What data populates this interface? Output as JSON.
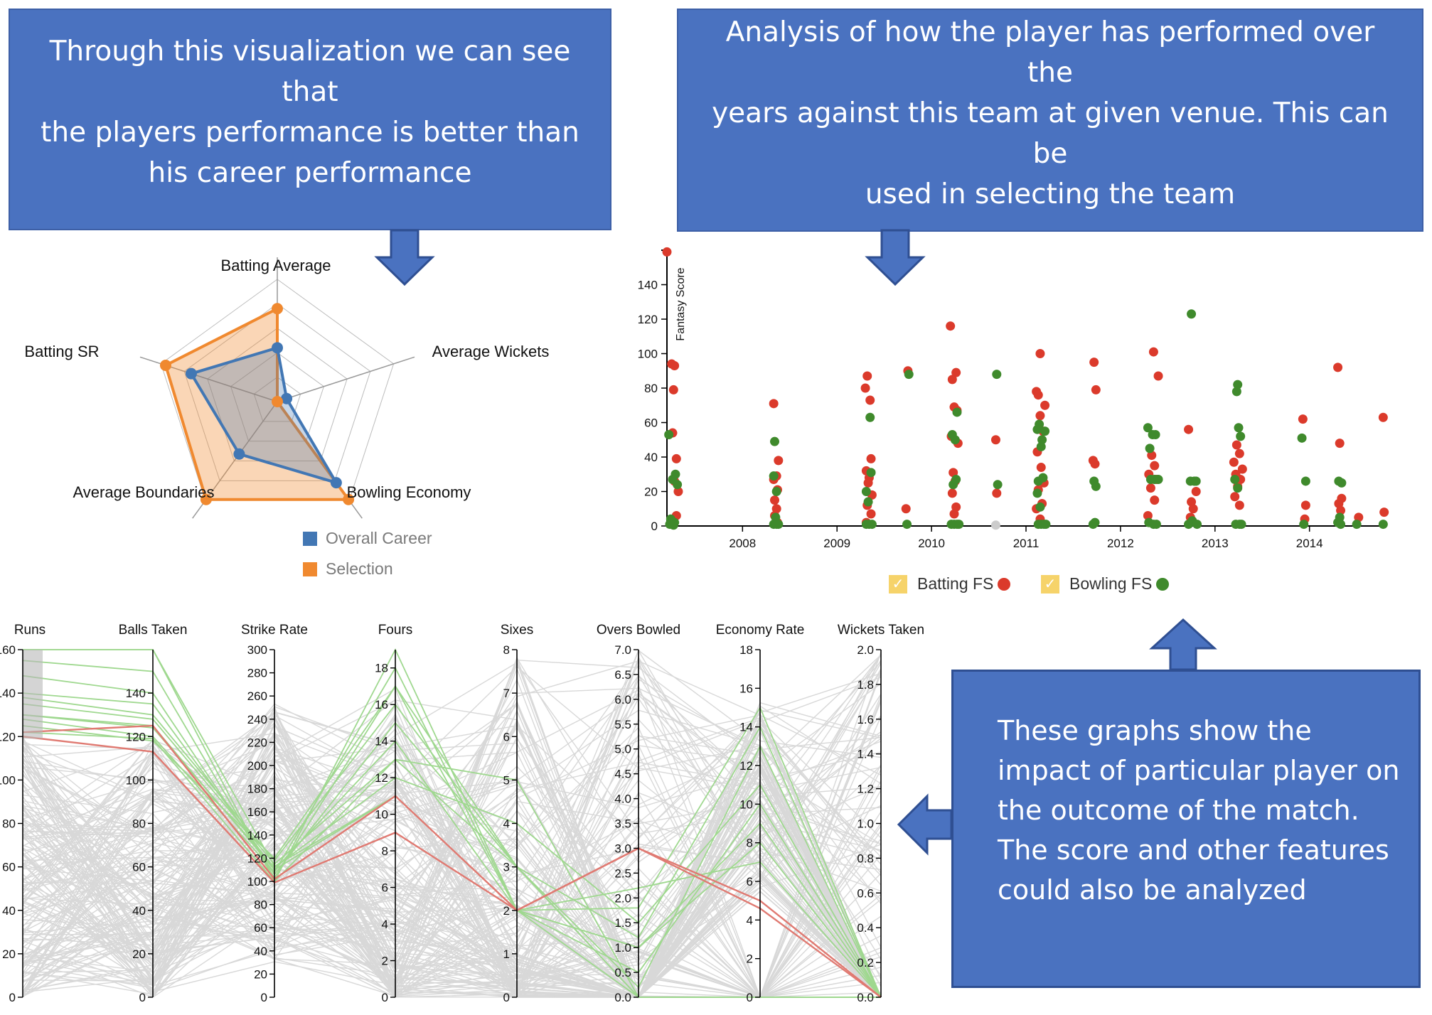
{
  "callouts": {
    "top_left": "Through this visualization we can see that\nthe players performance is better than\nhis career performance",
    "top_right": "Analysis of how the player has performed over the\nyears against this team at given venue. This can be\nused in selecting the team",
    "bottom_right": "These graphs show the\nimpact of particular player on\nthe outcome of the match.\nThe score and other features\ncould also be analyzed"
  },
  "colors": {
    "callout_fill": "#4a72c0",
    "career": "#4277b4",
    "selection": "#f0892f",
    "batting": "#db3a2b",
    "bowling": "#3f8a2c",
    "pc_background": "#d8d8d8",
    "pc_selected": "#9fd88f",
    "pc_highlight": "#e07a72",
    "checkbox": "#f6d36a"
  },
  "chart_data": [
    {
      "type": "radar",
      "axes": [
        "Batting Average",
        "Average Wickets",
        "Bowling Economy",
        "Average Boundaries",
        "Batting SR"
      ],
      "levels": 5,
      "series": [
        {
          "name": "Overall Career",
          "values": [
            0.44,
            0.08,
            0.82,
            0.53,
            0.74
          ]
        },
        {
          "name": "Selection",
          "values": [
            0.76,
            0.0,
            0.99,
            0.99,
            0.96
          ]
        }
      ],
      "legend": [
        "Overall Career",
        "Selection"
      ]
    },
    {
      "type": "scatter",
      "ylabel": "Fantasy Score",
      "y_ticks": [
        0,
        20,
        40,
        60,
        80,
        100,
        120,
        140
      ],
      "x_ticks": [
        "2008",
        "2009",
        "2010",
        "2011",
        "2012",
        "2013",
        "2014"
      ],
      "xlim": [
        2007.2,
        2014.8
      ],
      "ylim": [
        0,
        160
      ],
      "legend": [
        {
          "label": "Batting FS",
          "checked": true
        },
        {
          "label": "Bowling FS",
          "checked": true
        }
      ],
      "series": [
        {
          "name": "Batting FS",
          "points": [
            [
              2007.2,
              159
            ],
            [
              2007.25,
              94
            ],
            [
              2007.28,
              93
            ],
            [
              2007.27,
              79
            ],
            [
              2007.26,
              54
            ],
            [
              2007.3,
              39
            ],
            [
              2007.28,
              26
            ],
            [
              2007.32,
              20
            ],
            [
              2007.3,
              6
            ],
            [
              2007.27,
              3
            ],
            [
              2008.33,
              71
            ],
            [
              2008.38,
              38
            ],
            [
              2008.36,
              29
            ],
            [
              2008.33,
              27
            ],
            [
              2008.37,
              21
            ],
            [
              2008.34,
              15
            ],
            [
              2008.36,
              10
            ],
            [
              2008.34,
              6
            ],
            [
              2008.37,
              2
            ],
            [
              2009.32,
              87
            ],
            [
              2009.3,
              80
            ],
            [
              2009.35,
              73
            ],
            [
              2009.36,
              39
            ],
            [
              2009.31,
              32
            ],
            [
              2009.34,
              28
            ],
            [
              2009.33,
              25
            ],
            [
              2009.37,
              18
            ],
            [
              2009.32,
              12
            ],
            [
              2009.36,
              7
            ],
            [
              2009.31,
              2
            ],
            [
              2009.75,
              90
            ],
            [
              2009.73,
              10
            ],
            [
              2010.2,
              116
            ],
            [
              2010.26,
              89
            ],
            [
              2010.22,
              85
            ],
            [
              2010.24,
              69
            ],
            [
              2010.27,
              67
            ],
            [
              2010.21,
              52
            ],
            [
              2010.28,
              48
            ],
            [
              2010.23,
              31
            ],
            [
              2010.25,
              26
            ],
            [
              2010.22,
              19
            ],
            [
              2010.26,
              11
            ],
            [
              2010.24,
              7
            ],
            [
              2010.68,
              50
            ],
            [
              2010.69,
              19
            ],
            [
              2011.15,
              100
            ],
            [
              2011.11,
              78
            ],
            [
              2011.13,
              76
            ],
            [
              2011.2,
              70
            ],
            [
              2011.15,
              64
            ],
            [
              2011.18,
              55
            ],
            [
              2011.12,
              43
            ],
            [
              2011.16,
              34
            ],
            [
              2011.19,
              25
            ],
            [
              2011.13,
              21
            ],
            [
              2011.17,
              13
            ],
            [
              2011.11,
              10
            ],
            [
              2011.15,
              4
            ],
            [
              2011.72,
              95
            ],
            [
              2011.74,
              79
            ],
            [
              2011.71,
              38
            ],
            [
              2011.73,
              36
            ],
            [
              2012.35,
              101
            ],
            [
              2012.4,
              87
            ],
            [
              2012.33,
              41
            ],
            [
              2012.36,
              35
            ],
            [
              2012.3,
              30
            ],
            [
              2012.38,
              27
            ],
            [
              2012.32,
              22
            ],
            [
              2012.36,
              15
            ],
            [
              2012.29,
              6
            ],
            [
              2012.72,
              56
            ],
            [
              2012.75,
              14
            ],
            [
              2012.77,
              10
            ],
            [
              2012.8,
              20
            ],
            [
              2012.74,
              5
            ],
            [
              2013.23,
              47
            ],
            [
              2013.26,
              42
            ],
            [
              2013.2,
              37
            ],
            [
              2013.29,
              33
            ],
            [
              2013.22,
              30
            ],
            [
              2013.27,
              27
            ],
            [
              2013.24,
              23
            ],
            [
              2013.21,
              17
            ],
            [
              2013.26,
              12
            ],
            [
              2013.93,
              62
            ],
            [
              2013.96,
              12
            ],
            [
              2013.95,
              4
            ],
            [
              2014.3,
              92
            ],
            [
              2014.32,
              48
            ],
            [
              2014.34,
              16
            ],
            [
              2014.31,
              13
            ],
            [
              2014.33,
              9
            ],
            [
              2014.52,
              5
            ],
            [
              2014.78,
              63
            ],
            [
              2014.79,
              8
            ]
          ]
        },
        {
          "name": "Bowling FS",
          "points": [
            [
              2007.22,
              53
            ],
            [
              2007.29,
              30
            ],
            [
              2007.26,
              27
            ],
            [
              2007.31,
              24
            ],
            [
              2007.24,
              4
            ],
            [
              2007.28,
              2
            ],
            [
              2007.23,
              1
            ],
            [
              2007.27,
              0.5
            ],
            [
              2008.34,
              49
            ],
            [
              2008.33,
              29
            ],
            [
              2008.36,
              20
            ],
            [
              2008.35,
              5
            ],
            [
              2008.33,
              1
            ],
            [
              2008.38,
              1
            ],
            [
              2008.36,
              1
            ],
            [
              2009.35,
              63
            ],
            [
              2009.31,
              20
            ],
            [
              2009.33,
              14
            ],
            [
              2009.36,
              31
            ],
            [
              2009.34,
              1
            ],
            [
              2009.31,
              1
            ],
            [
              2009.37,
              1
            ],
            [
              2009.76,
              88
            ],
            [
              2009.74,
              1
            ],
            [
              2010.22,
              53
            ],
            [
              2010.25,
              50
            ],
            [
              2010.27,
              66
            ],
            [
              2010.23,
              24
            ],
            [
              2010.26,
              27
            ],
            [
              2010.21,
              1
            ],
            [
              2010.24,
              1
            ],
            [
              2010.27,
              1
            ],
            [
              2010.29,
              1
            ],
            [
              2010.69,
              88
            ],
            [
              2010.7,
              24
            ],
            [
              2011.14,
              59
            ],
            [
              2011.12,
              56
            ],
            [
              2011.17,
              50
            ],
            [
              2011.2,
              55
            ],
            [
              2011.16,
              46
            ],
            [
              2011.13,
              26
            ],
            [
              2011.18,
              28
            ],
            [
              2011.12,
              19
            ],
            [
              2011.15,
              11
            ],
            [
              2011.13,
              1
            ],
            [
              2011.16,
              1
            ],
            [
              2011.19,
              1
            ],
            [
              2011.21,
              1
            ],
            [
              2011.72,
              26
            ],
            [
              2011.74,
              23
            ],
            [
              2011.73,
              2
            ],
            [
              2011.71,
              1
            ],
            [
              2012.29,
              57
            ],
            [
              2012.34,
              53
            ],
            [
              2012.37,
              53
            ],
            [
              2012.31,
              45
            ],
            [
              2012.32,
              27
            ],
            [
              2012.36,
              27
            ],
            [
              2012.4,
              27
            ],
            [
              2012.3,
              2
            ],
            [
              2012.35,
              1
            ],
            [
              2012.38,
              1
            ],
            [
              2012.75,
              123
            ],
            [
              2012.74,
              26
            ],
            [
              2012.78,
              26
            ],
            [
              2012.8,
              26
            ],
            [
              2012.76,
              3
            ],
            [
              2012.72,
              1
            ],
            [
              2012.81,
              1
            ],
            [
              2013.24,
              82
            ],
            [
              2013.23,
              78
            ],
            [
              2013.25,
              57
            ],
            [
              2013.27,
              52
            ],
            [
              2013.21,
              27
            ],
            [
              2013.24,
              22
            ],
            [
              2013.28,
              1
            ],
            [
              2013.22,
              1
            ],
            [
              2013.26,
              1
            ],
            [
              2013.92,
              51
            ],
            [
              2013.96,
              26
            ],
            [
              2013.94,
              1
            ],
            [
              2014.31,
              26
            ],
            [
              2014.34,
              25
            ],
            [
              2014.32,
              5
            ],
            [
              2014.3,
              2
            ],
            [
              2014.33,
              1
            ],
            [
              2014.5,
              1
            ],
            [
              2014.78,
              1
            ]
          ]
        },
        {
          "name": "Other",
          "points": [
            [
              2010.68,
              0.5
            ]
          ]
        }
      ]
    },
    {
      "type": "parallel_coordinates",
      "axes": [
        {
          "label": "Runs",
          "min": 0,
          "max": 160,
          "ticks": [
            "0",
            "20",
            "40",
            "60",
            "80",
            "100",
            "120",
            "140",
            "160"
          ]
        },
        {
          "label": "Balls Taken",
          "min": 0,
          "max": 160,
          "ticks": [
            "0",
            "20",
            "40",
            "60",
            "80",
            "100",
            "120",
            "140"
          ]
        },
        {
          "label": "Strike Rate",
          "min": 0,
          "max": 300,
          "ticks": [
            "0",
            "20",
            "40",
            "60",
            "80",
            "100",
            "120",
            "140",
            "160",
            "180",
            "200",
            "220",
            "240",
            "260",
            "280",
            "300"
          ]
        },
        {
          "label": "Fours",
          "min": 0,
          "max": 19,
          "ticks": [
            "0",
            "2",
            "4",
            "6",
            "8",
            "10",
            "12",
            "14",
            "16",
            "18"
          ]
        },
        {
          "label": "Sixes",
          "min": 0,
          "max": 8,
          "ticks": [
            "0",
            "1",
            "2",
            "3",
            "4",
            "5",
            "6",
            "7",
            "8"
          ]
        },
        {
          "label": "Overs Bowled",
          "min": 0,
          "max": 7,
          "ticks": [
            "0.0",
            "0.5",
            "1.0",
            "1.5",
            "2.0",
            "2.5",
            "3.0",
            "3.5",
            "4.0",
            "4.5",
            "5.0",
            "5.5",
            "6.0",
            "6.5",
            "7.0"
          ]
        },
        {
          "label": "Economy Rate",
          "min": 0,
          "max": 18,
          "ticks": [
            "0",
            "2",
            "4",
            "6",
            "8",
            "10",
            "12",
            "14",
            "16",
            "18"
          ]
        },
        {
          "label": "Wickets Taken",
          "min": 0,
          "max": 2,
          "ticks": [
            "0.0",
            "0.2",
            "0.4",
            "0.6",
            "0.8",
            "1.0",
            "1.2",
            "1.4",
            "1.6",
            "1.8",
            "2.0"
          ]
        }
      ],
      "brush": {
        "axis": "Runs",
        "range": [
          119,
          160
        ]
      },
      "selected_lines": [
        [
          160,
          160,
          100,
          19,
          2,
          0,
          0,
          0
        ],
        [
          155,
          150,
          103,
          17,
          2,
          1,
          8,
          0
        ],
        [
          148,
          140,
          106,
          15,
          3,
          0,
          0,
          0
        ],
        [
          140,
          135,
          110,
          14,
          2,
          1,
          9,
          0
        ],
        [
          138,
          130,
          118,
          16,
          3,
          1.2,
          14,
          0
        ],
        [
          135,
          128,
          115,
          13,
          5,
          0,
          0,
          0
        ],
        [
          130,
          124,
          112,
          12,
          4,
          1.5,
          11,
          0
        ],
        [
          128,
          120,
          108,
          18,
          2,
          2.2,
          7,
          0
        ],
        [
          125,
          118,
          120,
          17,
          3,
          0.2,
          13,
          0
        ],
        [
          160,
          160,
          113,
          11,
          2,
          0.5,
          10,
          0
        ],
        [
          122,
          119,
          100,
          13,
          3,
          0,
          0,
          0
        ],
        [
          130,
          125,
          110,
          11,
          2,
          1.8,
          15,
          0
        ]
      ],
      "highlighted_lines": [
        [
          122,
          125,
          102,
          11,
          2,
          3,
          5,
          0
        ],
        [
          120,
          113,
          99,
          9,
          2,
          3,
          4.6,
          0
        ]
      ]
    }
  ]
}
